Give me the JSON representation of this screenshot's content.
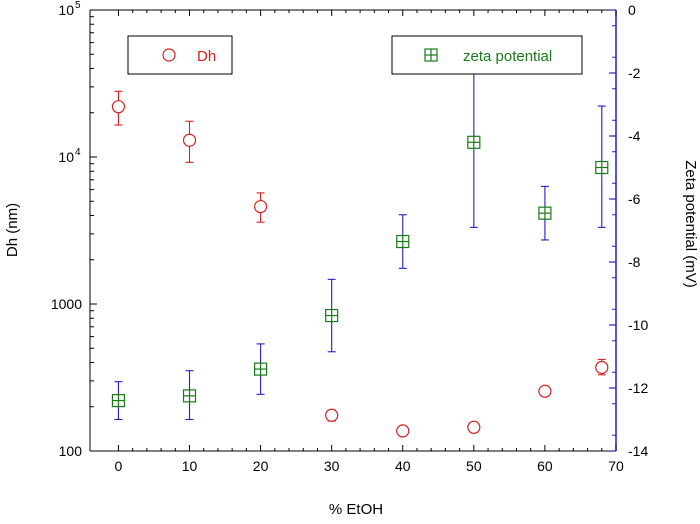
{
  "chart_data": {
    "type": "scatter",
    "x": [
      0,
      10,
      20,
      30,
      40,
      50,
      60,
      68
    ],
    "xlabel": "% EtOH",
    "xlim": [
      -4,
      70
    ],
    "xticks": [
      0,
      10,
      20,
      30,
      40,
      50,
      60,
      70
    ],
    "ylabel_left": "Dh (nm)",
    "ylim_left": [
      100,
      100000
    ],
    "yscale_left": "log",
    "yticks_left": [
      {
        "value": 100,
        "label": "100",
        "sup": ""
      },
      {
        "value": 1000,
        "label": "1000",
        "sup": ""
      },
      {
        "value": 10000,
        "label": "10",
        "sup": "4"
      },
      {
        "value": 100000,
        "label": "10",
        "sup": "5"
      }
    ],
    "ylabel_right": "Zeta potential (mV)",
    "ylim_right": [
      -14,
      0
    ],
    "yticks_right": [
      0,
      -2,
      -4,
      -6,
      -8,
      -10,
      -12,
      -14
    ],
    "series": [
      {
        "name": "Dh",
        "axis": "left",
        "marker": "open-circle",
        "color": "#d42020",
        "errorbar_color": "#d42020",
        "values": [
          22000,
          13000,
          4600,
          175,
          137,
          145,
          255,
          370
        ],
        "err_low": [
          16500,
          9200,
          3600,
          160,
          128,
          134,
          240,
          330
        ],
        "err_high": [
          28000,
          17500,
          5700,
          190,
          146,
          156,
          270,
          420
        ]
      },
      {
        "name": "zeta potential",
        "axis": "right",
        "marker": "open-square-cross",
        "color": "#1a7a1a",
        "errorbar_color": "#2020c8",
        "values": [
          -12.4,
          -12.25,
          -11.4,
          -9.7,
          -7.35,
          -4.2,
          -6.45,
          -5.0
        ],
        "err_low": [
          -13.0,
          -13.0,
          -12.2,
          -10.85,
          -8.2,
          -6.9,
          -7.3,
          -6.9
        ],
        "err_high": [
          -11.8,
          -11.45,
          -10.6,
          -8.55,
          -6.5,
          -1.45,
          -5.6,
          -3.05
        ]
      }
    ],
    "legend": [
      {
        "label": "Dh",
        "position": "top-left"
      },
      {
        "label": "zeta potential",
        "position": "top-right"
      }
    ]
  },
  "colors": {
    "axis_left": "#000000",
    "axis_right": "#2020c8"
  }
}
